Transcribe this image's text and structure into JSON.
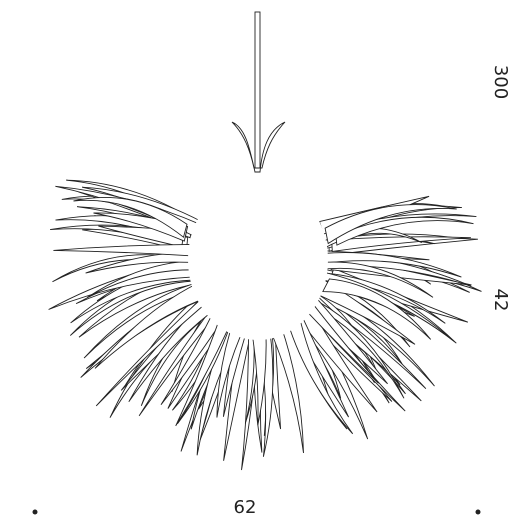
{
  "dimensions": [
    "62",
    "300",
    "42"
  ]
}
